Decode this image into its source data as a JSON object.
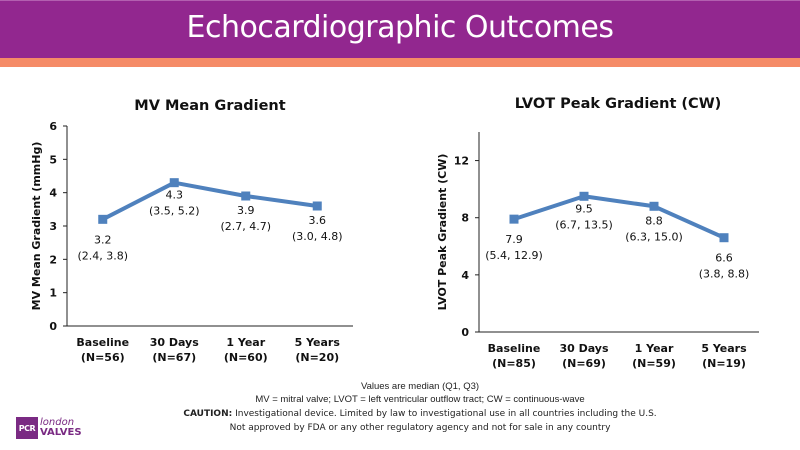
{
  "header": {
    "title": "Echocardiographic Outcomes",
    "colors": {
      "title_bar": "#92278f",
      "accent_bar": "#f58b67",
      "series_line": "#4f81bd"
    }
  },
  "chart_data": [
    {
      "type": "line",
      "title": "MV Mean Gradient",
      "xlabel": "",
      "ylabel": "MV Mean Gradient (mmHg)",
      "ylim": [
        0,
        6
      ],
      "yticks": [
        0,
        1,
        2,
        3,
        4,
        5,
        6
      ],
      "grid": false,
      "categories": [
        "Baseline",
        "30 Days",
        "1 Year",
        "5 Years"
      ],
      "category_n": [
        "(N=56)",
        "(N=67)",
        "(N=60)",
        "(N=20)"
      ],
      "series": [
        {
          "name": "Median",
          "values": [
            3.2,
            4.3,
            3.9,
            3.6
          ]
        }
      ],
      "data_labels": [
        {
          "value": "3.2",
          "iqr": "(2.4, 3.8)"
        },
        {
          "value": "4.3",
          "iqr": "(3.5, 5.2)"
        },
        {
          "value": "3.9",
          "iqr": "(2.7, 4.7)"
        },
        {
          "value": "3.6",
          "iqr": "(3.0, 4.8)"
        }
      ]
    },
    {
      "type": "line",
      "title": "LVOT Peak Gradient (CW)",
      "xlabel": "",
      "ylabel": "LVOT Peak Gradient (CW)",
      "ylim": [
        0,
        14
      ],
      "yticks": [
        0,
        4,
        8,
        12
      ],
      "grid": false,
      "categories": [
        "Baseline",
        "30 Days",
        "1 Year",
        "5 Years"
      ],
      "category_n": [
        "(N=85)",
        "(N=69)",
        "(N=59)",
        "(N=19)"
      ],
      "series": [
        {
          "name": "Median",
          "values": [
            7.9,
            9.5,
            8.8,
            6.6
          ]
        }
      ],
      "data_labels": [
        {
          "value": "7.9",
          "iqr": "(5.4, 12.9)"
        },
        {
          "value": "9.5",
          "iqr": "(6.7, 13.5)"
        },
        {
          "value": "8.8",
          "iqr": "(6.3, 15.0)"
        },
        {
          "value": "6.6",
          "iqr": "(3.8, 8.8)"
        }
      ]
    }
  ],
  "footnotes": {
    "line1": "Values are median (Q1, Q3)",
    "line2": "MV = mitral valve; LVOT = left ventricular outflow tract; CW = continuous-wave",
    "caution_label": "CAUTION:",
    "caution_text": " Investigational device. Limited by law to investigational use in all countries including the U.S.",
    "line4": "Not approved by FDA or any other regulatory agency and not for sale in any country"
  },
  "logo": {
    "box": "PCR",
    "line1": "london",
    "line2": "VALVES"
  }
}
